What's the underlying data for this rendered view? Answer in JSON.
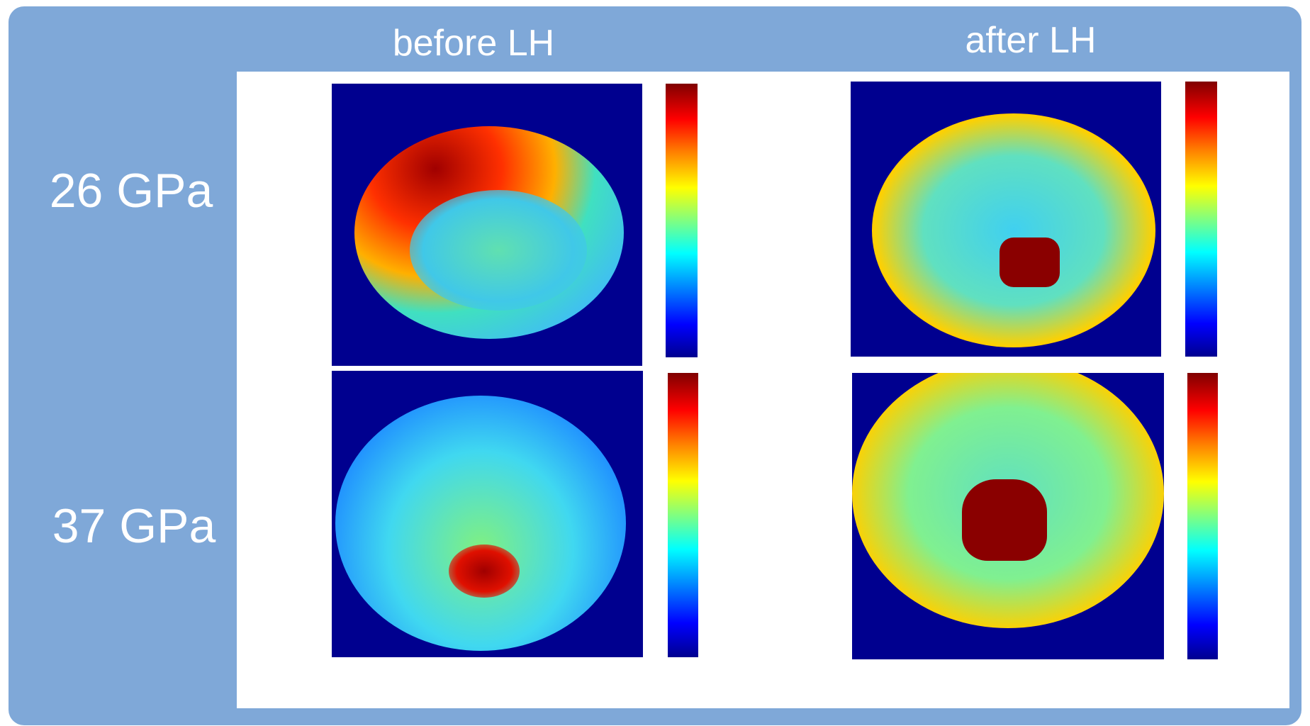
{
  "columns": {
    "before": "before LH",
    "after": "after LH"
  },
  "rows": {
    "first": "26 GPa",
    "second": "37 GPa"
  }
}
